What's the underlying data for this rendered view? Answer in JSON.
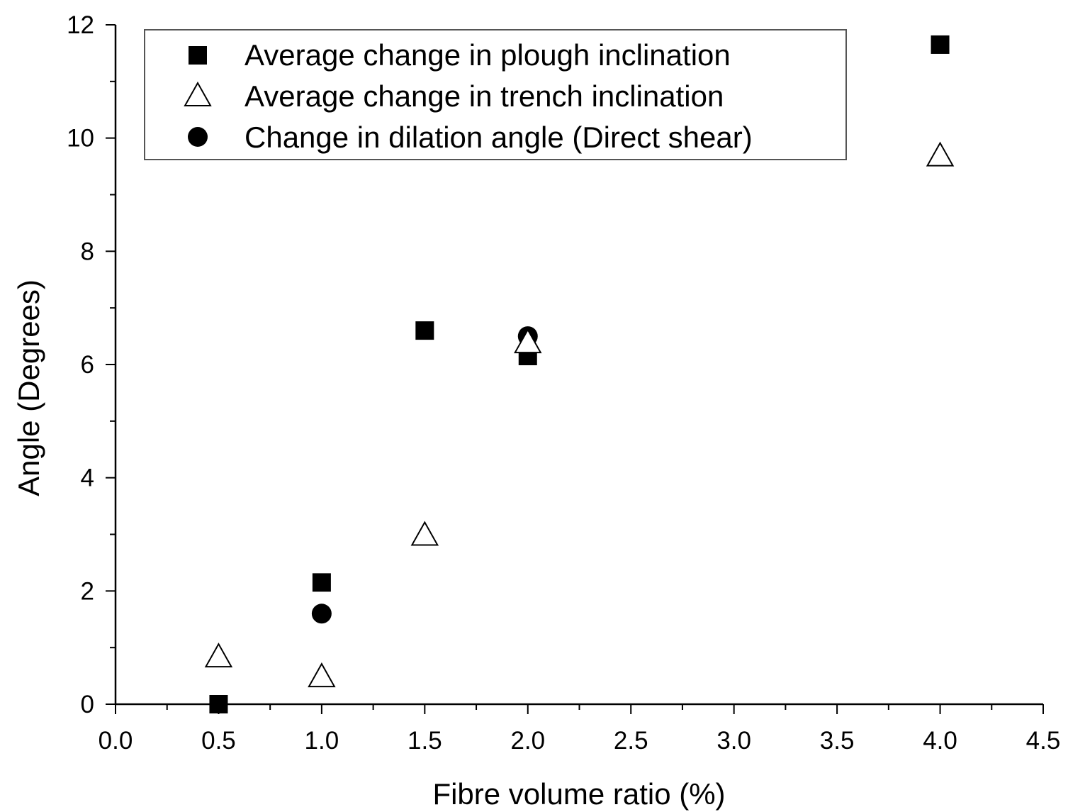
{
  "chart_data": {
    "type": "scatter",
    "title": "",
    "xlabel": "Fibre volume ratio (%)",
    "ylabel": "Angle (Degrees)",
    "xlim": [
      0.0,
      4.5
    ],
    "ylim": [
      0,
      12
    ],
    "xticks": [
      "0.0",
      "0.5",
      "1.0",
      "1.5",
      "2.0",
      "2.5",
      "3.0",
      "3.5",
      "4.0",
      "4.5"
    ],
    "yticks": [
      "0",
      "2",
      "4",
      "6",
      "8",
      "10",
      "12"
    ],
    "grid": false,
    "legend_position": "top",
    "series": [
      {
        "name": "Average change in plough inclination",
        "marker": "filled-square",
        "points": [
          {
            "x": 0.5,
            "y": 0.0
          },
          {
            "x": 1.0,
            "y": 2.15
          },
          {
            "x": 1.5,
            "y": 6.6
          },
          {
            "x": 2.0,
            "y": 6.15
          },
          {
            "x": 4.0,
            "y": 11.65
          }
        ]
      },
      {
        "name": "Average change in trench inclination",
        "marker": "open-triangle",
        "points": [
          {
            "x": 0.5,
            "y": 0.85
          },
          {
            "x": 1.0,
            "y": 0.5
          },
          {
            "x": 1.5,
            "y": 3.0
          },
          {
            "x": 2.0,
            "y": 6.4
          },
          {
            "x": 4.0,
            "y": 9.7
          }
        ]
      },
      {
        "name": "Change in dilation angle (Direct shear)",
        "marker": "filled-circle",
        "points": [
          {
            "x": 1.0,
            "y": 1.6
          },
          {
            "x": 2.0,
            "y": 6.5
          }
        ]
      }
    ]
  }
}
